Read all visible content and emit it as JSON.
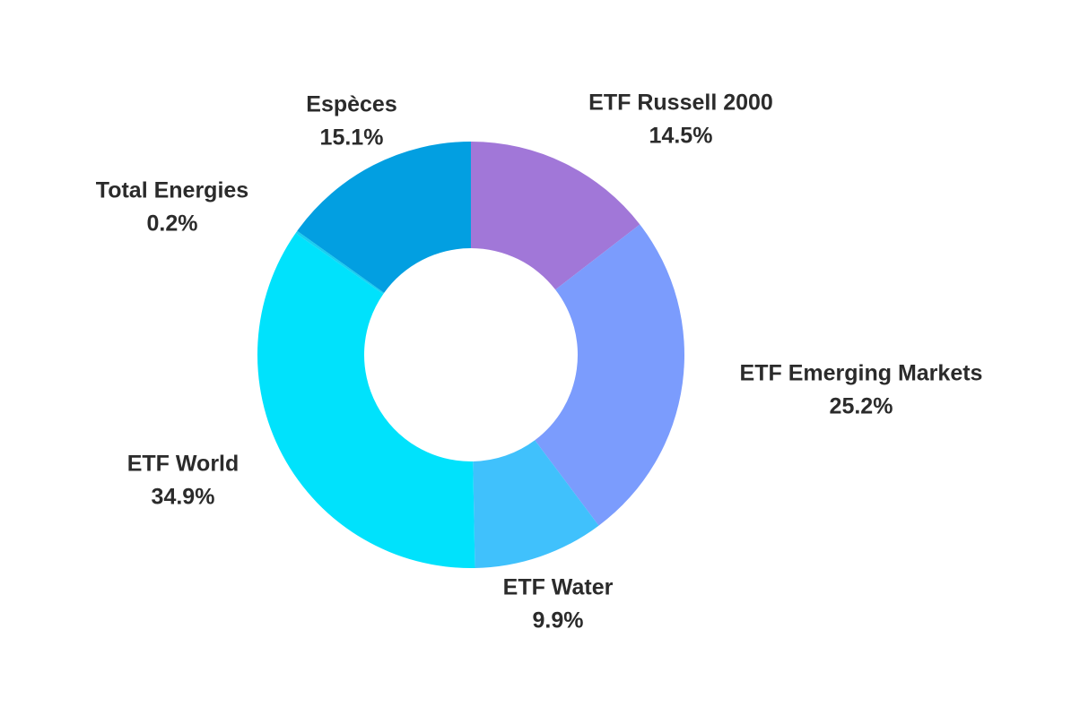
{
  "chart_data": {
    "type": "pie",
    "donut": true,
    "start_angle_deg": 0,
    "direction": "clockwise",
    "slices": [
      {
        "label": "ETF Russell 2000",
        "value": 14.5,
        "value_label": "14.5%",
        "color": "#A177D8"
      },
      {
        "label": "ETF Emerging Markets",
        "value": 25.2,
        "value_label": "25.2%",
        "color": "#7B9CFD"
      },
      {
        "label": "ETF Water",
        "value": 9.9,
        "value_label": "9.9%",
        "color": "#40C1FC"
      },
      {
        "label": "ETF World",
        "value": 34.9,
        "value_label": "34.9%",
        "color": "#00E2FC"
      },
      {
        "label": "Total Energies",
        "value": 0.2,
        "value_label": "0.2%",
        "color": "#19CEF0"
      },
      {
        "label": "Espèces",
        "value": 15.1,
        "value_label": "15.1%",
        "color": "#029FE1"
      }
    ],
    "legend": "none"
  }
}
